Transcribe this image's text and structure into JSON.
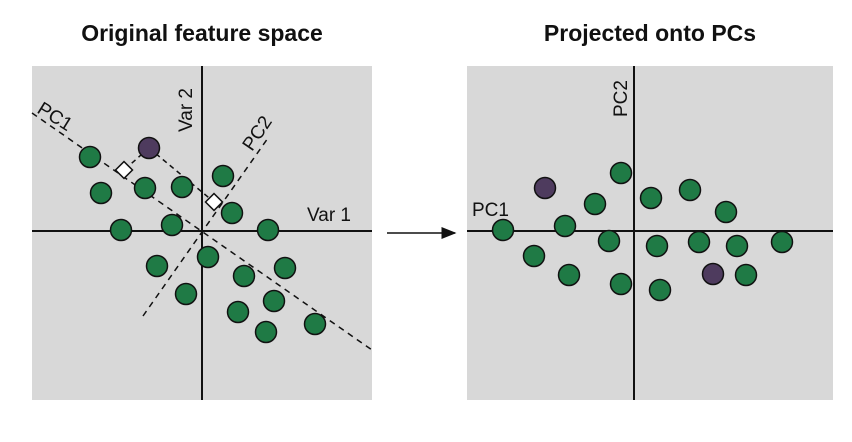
{
  "left_panel": {
    "title": "Original feature space",
    "axis_x_label": "Var 1",
    "axis_y_label": "Var 2",
    "pc1_label": "PC1",
    "pc2_label": "PC2"
  },
  "right_panel": {
    "title": "Projected onto PCs",
    "axis_x_label": "PC1",
    "axis_y_label": "PC2"
  },
  "colors": {
    "background": "#d8d8d8",
    "point_green": "#1f7a45",
    "point_purple": "#4e3b5e",
    "axis": "#111111"
  }
}
